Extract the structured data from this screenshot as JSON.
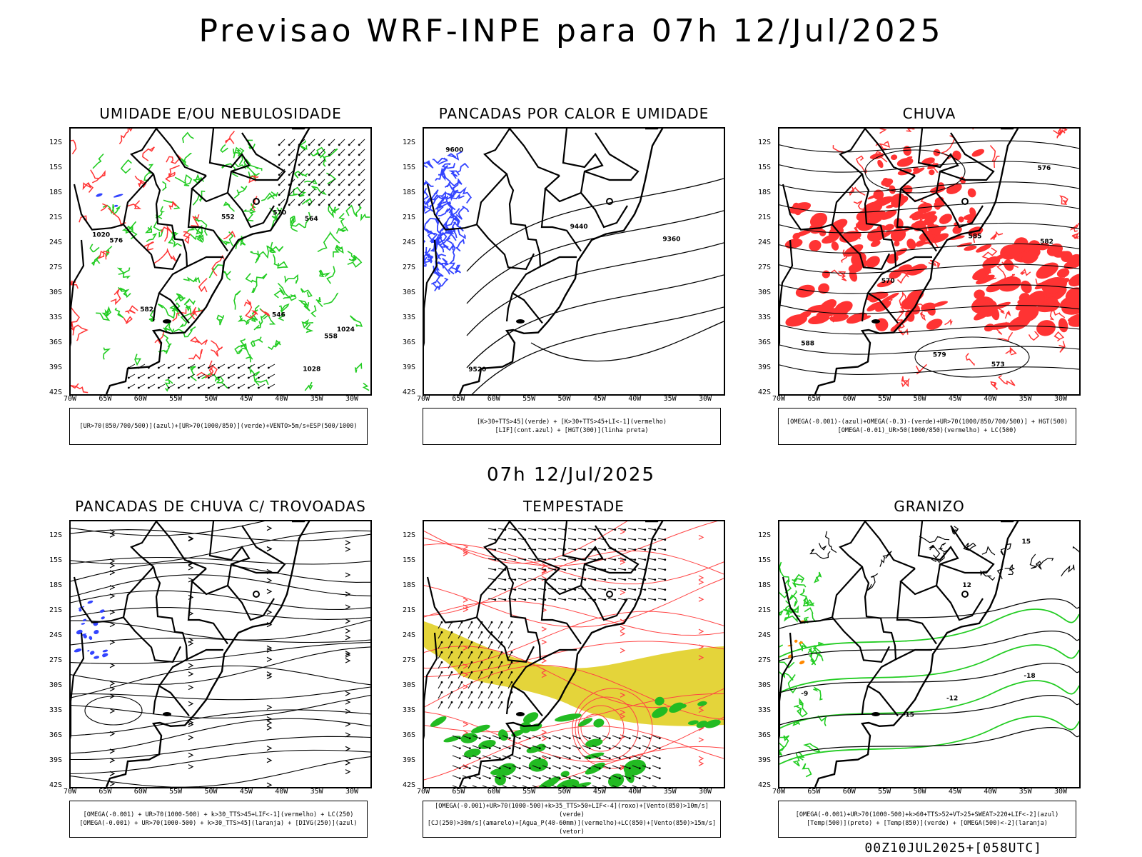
{
  "main_title": "Previsao WRF-INPE  para 07h 12/Jul/2025",
  "middle_title": "07h 12/Jul/2025",
  "footer": "00Z10JUL2025+[058UTC]",
  "lat_labels": [
    "12S",
    "15S",
    "18S",
    "21S",
    "24S",
    "27S",
    "30S",
    "33S",
    "36S",
    "39S",
    "42S"
  ],
  "lon_labels": [
    "70W",
    "65W",
    "60W",
    "55W",
    "50W",
    "45W",
    "40W",
    "35W",
    "30W"
  ],
  "panels": [
    {
      "title": "UMIDADE E/OU NEBULOSIDADE",
      "legend": [
        "[UR>70(850/700/500)](azul)+[UR>70(1000/850)](verde)+VENTO>5m/s+ESP(500/1000)"
      ],
      "contour_labels": [
        "1020",
        "1024",
        "1028",
        "558",
        "564",
        "570",
        "576",
        "582",
        "552",
        "546"
      ],
      "colors": {
        "wet_layer": "#22cc22",
        "thickness": "#ff3333",
        "mid_layer": "#3344ff"
      }
    },
    {
      "title": "PANCADAS POR CALOR E UMIDADE",
      "legend": [
        "[K>30+TTS>45](verde) + [K>30+TTS>45+LI<-1](vermelho)",
        "[LIF](cont.azul) + [HGT(300)](linha preta)"
      ],
      "contour_labels": [
        "9600",
        "9520",
        "9440",
        "9360"
      ],
      "colors": {
        "lif": "#3344ff",
        "hgt": "#000000"
      }
    },
    {
      "title": "CHUVA",
      "legend": [
        "[OMEGA(-0.001)-(azul)+OMEGA(-0.3)-(verde)+UR>70(1000/850/700/500)] + HGT(500)",
        "[OMEGA(-0.01)_UR>50(1000/850)(vermelho) + LC(500)"
      ],
      "contour_labels": [
        "588",
        "585",
        "582",
        "579",
        "576",
        "573",
        "570"
      ],
      "colors": {
        "rain": "#ff3333",
        "hgt": "#000000"
      }
    },
    {
      "title": "PANCADAS DE CHUVA C/ TROVOADAS",
      "legend": [
        "[OMEGA(-0.001) + UR>70(1000-500) + k>30_TTS>45+LIF<-1](vermelho) + LC(250)",
        "[OMEGA(-0.001) + UR>70(1000-500) + k>30_TTS>45](laranja) + [DIVG(250)](azul)"
      ],
      "contour_labels": [],
      "colors": {
        "divg": "#3344ff",
        "stream": "#000000"
      }
    },
    {
      "title": "TEMPESTADE",
      "legend": [
        "[OMEGA(-0.001)+UR>70(1000-500)+k>35_TTS>50+LIF<-4](roxo)+[Vento(850)>10m/s](verde)",
        "[CJ(250)>30m/s](amarelo)+[Agua_P(40-60mm)](vermelho)+LC(850)+[Vento(850)>15m/s](vetor)"
      ],
      "contour_labels": [],
      "colors": {
        "jet": "#e3d22f",
        "wind850": "#22bb22",
        "stream": "#ff4444"
      }
    },
    {
      "title": "GRANIZO",
      "legend": [
        "[OMEGA(-0.001)+UR>70(1000-500)+k>60+TTS>52+VT>25+SWEAT>220+LIF<-2](azul)",
        "[Temp(500)](preto) + [Temp(850)](verde) + [OMEGA(500)<-2](laranja)"
      ],
      "contour_labels": [
        "-9",
        "-12",
        "-15",
        "-18",
        "12",
        "15"
      ],
      "colors": {
        "t850": "#22cc22",
        "t500": "#000000",
        "omega": "#ff8800"
      }
    }
  ]
}
